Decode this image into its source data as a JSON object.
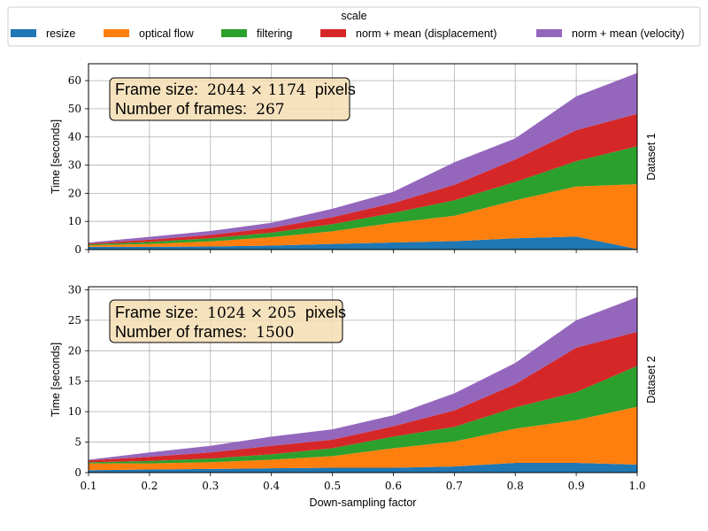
{
  "legend": {
    "title": "scale",
    "entries": [
      {
        "name": "resize",
        "color": "#1f77b4"
      },
      {
        "name": "optical flow",
        "color": "#ff7f0e"
      },
      {
        "name": "filtering",
        "color": "#2ca02c"
      },
      {
        "name": "norm + mean (displacement)",
        "color": "#d62728"
      },
      {
        "name": "norm + mean (velocity)",
        "color": "#9467bd"
      }
    ]
  },
  "xlabel": "Down-sampling factor",
  "chart_data": [
    {
      "type": "area",
      "stacked": true,
      "side_label": "Dataset 1",
      "ylabel": "Time [seconds]",
      "xlim": [
        0.1,
        1.0
      ],
      "ylim": [
        0,
        66
      ],
      "xticks": [
        "0.1",
        "0.2",
        "0.3",
        "0.4",
        "0.5",
        "0.6",
        "0.7",
        "0.8",
        "0.9",
        "1.0"
      ],
      "yticks": [
        0,
        10,
        20,
        30,
        40,
        50,
        60
      ],
      "grid": true,
      "annotation": {
        "line1_label": "Frame size:",
        "line1_value": "2044 × 1174",
        "line1_unit": "pixels",
        "line2_label": "Number of frames:",
        "line2_value": "267"
      },
      "x": [
        0.1,
        0.2,
        0.3,
        0.4,
        0.5,
        0.6,
        0.7,
        0.8,
        0.9,
        1.0
      ],
      "series": [
        {
          "name": "resize",
          "values": [
            1.0,
            1.0,
            1.1,
            1.4,
            2.0,
            2.5,
            3.0,
            4.0,
            4.6,
            0.2
          ]
        },
        {
          "name": "optical flow",
          "values": [
            0.5,
            1.0,
            1.8,
            3.0,
            4.5,
            7.0,
            9.0,
            13.5,
            17.8,
            23.0
          ]
        },
        {
          "name": "filtering",
          "values": [
            0.4,
            0.7,
            1.1,
            1.6,
            2.5,
            3.5,
            5.5,
            6.5,
            9.0,
            13.5
          ]
        },
        {
          "name": "norm + mean (displacement)",
          "values": [
            0.3,
            0.8,
            1.2,
            1.7,
            2.5,
            3.5,
            5.5,
            8.0,
            11.0,
            11.5
          ]
        },
        {
          "name": "norm + mean (velocity)",
          "values": [
            0.3,
            1.0,
            1.4,
            1.8,
            3.0,
            4.0,
            8.0,
            7.5,
            12.0,
            14.5
          ]
        }
      ]
    },
    {
      "type": "area",
      "stacked": true,
      "side_label": "Dataset 2",
      "ylabel": "Time [seconds]",
      "xlim": [
        0.1,
        1.0
      ],
      "ylim": [
        0,
        30.5
      ],
      "xticks": [
        "0.1",
        "0.2",
        "0.3",
        "0.4",
        "0.5",
        "0.6",
        "0.7",
        "0.8",
        "0.9",
        "1.0"
      ],
      "yticks": [
        0,
        5,
        10,
        15,
        20,
        25,
        30
      ],
      "grid": true,
      "annotation": {
        "line1_label": "Frame size:",
        "line1_value": "1024 × 205",
        "line1_unit": "pixels",
        "line2_label": "Number of frames:",
        "line2_value": "1500"
      },
      "x": [
        0.1,
        0.2,
        0.3,
        0.4,
        0.5,
        0.6,
        0.7,
        0.8,
        0.9,
        1.0
      ],
      "series": [
        {
          "name": "resize",
          "values": [
            0.4,
            0.5,
            0.6,
            0.7,
            0.8,
            0.8,
            1.0,
            1.6,
            1.6,
            1.3
          ]
        },
        {
          "name": "optical flow",
          "values": [
            1.1,
            1.0,
            1.1,
            1.4,
            1.9,
            3.2,
            4.1,
            5.6,
            7.0,
            9.5
          ]
        },
        {
          "name": "filtering",
          "values": [
            0.2,
            0.4,
            0.6,
            0.9,
            1.3,
            1.9,
            2.4,
            3.5,
            4.6,
            6.7
          ]
        },
        {
          "name": "norm + mean (displacement)",
          "values": [
            0.3,
            0.7,
            1.0,
            1.4,
            1.4,
            1.7,
            2.7,
            3.8,
            7.3,
            5.6
          ]
        },
        {
          "name": "norm + mean (velocity)",
          "values": [
            0.1,
            0.7,
            1.1,
            1.5,
            1.7,
            1.8,
            2.8,
            3.5,
            4.5,
            5.7
          ]
        }
      ]
    }
  ]
}
